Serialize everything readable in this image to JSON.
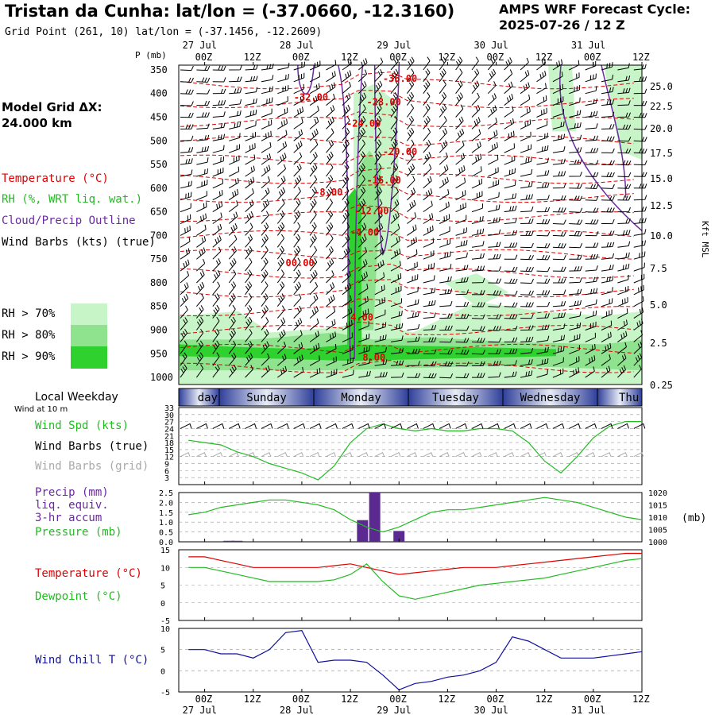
{
  "header": {
    "title": "Tristan da Cunha:  lat/lon = (-37.0660, -12.3160)",
    "subtitle": "Grid Point (261, 10) lat/lon = (-37.1456, -12.2609)",
    "cycle_line1": "AMPS WRF Forecast Cycle:",
    "cycle_line2": "2025-07-26 / 12  Z"
  },
  "left_panel": {
    "model_grid_line1": "Model Grid ΔX:",
    "model_grid_line2": " 24.000 km",
    "legend_temperature": "Temperature (°C)",
    "legend_rh": "RH (%, WRT liq. wat.)",
    "legend_cloud": "Cloud/Precip Outline",
    "legend_wind": "Wind Barbs (kts) (true)",
    "rh70": "RH > 70%",
    "rh80": "RH > 80%",
    "rh90": "RH > 90%",
    "local_weekday": "Local Weekday",
    "wind_at": "Wind at 10 m",
    "wind_spd": "Wind Spd (kts)",
    "wind_barbs_true": "Wind Barbs (true)",
    "wind_barbs_grid": "Wind Barbs (grid)",
    "precip1": "Precip (mm)",
    "precip2": "liq. equiv.",
    "precip3": "3-hr accum",
    "pressure": "Pressure (mb)",
    "temperature": "Temperature (°C)",
    "dewpoint": "Dewpoint (°C)",
    "windchill": "Wind Chill T (°C)"
  },
  "colors": {
    "temperature": "#e00000",
    "rh70": "#c8f5c8",
    "rh80": "#8fe38f",
    "rh90": "#2ed12e",
    "cloud": "#6a2aa0",
    "pressure": "#22bb22",
    "windchill": "#1010a0",
    "precip": "#5a2a90",
    "day_band": "#3a4aa0"
  },
  "chart_data": [
    {
      "type": "line",
      "id": "cross-section",
      "ylabel_left": "P (mb)",
      "ylabel_right": "Kft MSL",
      "pressure_ticks": [
        "350",
        "400",
        "450",
        "500",
        "550",
        "600",
        "650",
        "700",
        "750",
        "800",
        "850",
        "900",
        "950",
        "1000"
      ],
      "kft_ticks": [
        "25.0",
        "22.5",
        "20.0",
        "17.5",
        "15.0",
        "12.5",
        "10.0",
        "7.5",
        "5.0",
        "2.5",
        "0.25"
      ],
      "x_ticks_top": [
        "00Z",
        "12Z",
        "00Z",
        "12Z",
        "00Z",
        "12Z",
        "00Z",
        "12Z",
        "00Z",
        "12Z"
      ],
      "x_dates_top": [
        "27 Jul",
        "28 Jul",
        "29 Jul",
        "30 Jul",
        "31 Jul"
      ],
      "temperature_labels": [
        {
          "text": "-36.00",
          "p": 375
        },
        {
          "text": "-32.00",
          "p": 415
        },
        {
          "text": "-28.00",
          "p": 425
        },
        {
          "text": "-24.00",
          "p": 470
        },
        {
          "text": "-20.00",
          "p": 530
        },
        {
          "text": "-16.00",
          "p": 590
        },
        {
          "text": "-8.00",
          "p": 615
        },
        {
          "text": "-12.00",
          "p": 655
        },
        {
          "text": "-4.00",
          "p": 700
        },
        {
          "text": "00.00",
          "p": 765
        },
        {
          "text": "4.00",
          "p": 880
        },
        {
          "text": "8.00",
          "p": 965
        }
      ]
    },
    {
      "type": "line",
      "id": "weekday",
      "days": [
        "day",
        "Sunday",
        "Monday",
        "Tuesday",
        "Wednesday",
        "Thu"
      ]
    },
    {
      "type": "line",
      "id": "wind-speed",
      "ylabel": "Wind Spd (kts)",
      "yticks": [
        "33",
        "30",
        "27",
        "24",
        "21",
        "18",
        "15",
        "12",
        "9",
        "6",
        "3"
      ],
      "ylim": [
        0,
        33
      ],
      "x": [
        -4,
        0,
        4,
        8,
        12,
        16,
        20,
        24,
        28,
        32,
        36,
        40,
        44,
        48,
        52,
        56,
        60,
        64,
        68,
        72,
        76,
        80,
        84,
        88,
        92,
        96,
        100,
        104,
        108
      ],
      "values": [
        19,
        18,
        17,
        14,
        12,
        9,
        7,
        5,
        2,
        8,
        18,
        24,
        26,
        24,
        23,
        24,
        23,
        23,
        24,
        24,
        23,
        18,
        10,
        5,
        12,
        20,
        25,
        27,
        27
      ]
    },
    {
      "type": "bar",
      "id": "precip-pressure",
      "yticks_left": [
        "2.5",
        "2.0",
        "1.5",
        "1.0",
        "0.5",
        "0.0"
      ],
      "yticks_right": [
        "1020",
        "1015",
        "1010",
        "1005",
        "1000"
      ],
      "ylim_precip": [
        0,
        2.5
      ],
      "ylim_pressure": [
        1000,
        1020
      ],
      "precip_x": [
        6,
        8,
        39,
        42,
        48
      ],
      "precip_values": [
        0.05,
        0.05,
        1.1,
        2.5,
        0.55
      ],
      "pressure_x": [
        -4,
        0,
        4,
        8,
        12,
        16,
        20,
        24,
        28,
        32,
        36,
        40,
        44,
        48,
        52,
        56,
        60,
        64,
        68,
        72,
        76,
        80,
        84,
        88,
        92,
        96,
        100,
        104,
        108
      ],
      "pressure_values": [
        1011,
        1012,
        1014,
        1015,
        1016,
        1017,
        1017,
        1016,
        1015,
        1013,
        1009,
        1006,
        1004,
        1006,
        1009,
        1012,
        1013,
        1013,
        1014,
        1015,
        1016,
        1017,
        1018,
        1017,
        1016,
        1014,
        1012,
        1010,
        1009
      ]
    },
    {
      "type": "line",
      "id": "temp-dew",
      "yticks": [
        "15",
        "10",
        "5",
        "0",
        "-5"
      ],
      "ylim": [
        -5,
        15
      ],
      "x": [
        -4,
        0,
        4,
        8,
        12,
        16,
        20,
        24,
        28,
        32,
        36,
        40,
        44,
        48,
        52,
        56,
        60,
        64,
        68,
        72,
        76,
        80,
        84,
        88,
        92,
        96,
        100,
        104,
        108
      ],
      "series": [
        {
          "name": "Temperature",
          "values": [
            13,
            13,
            12,
            11,
            10,
            10,
            10,
            10,
            10,
            10.5,
            11,
            10,
            9,
            8,
            8.5,
            9,
            9.5,
            10,
            10,
            10,
            10.5,
            11,
            11.5,
            12,
            12.5,
            13,
            13.5,
            14,
            14
          ]
        },
        {
          "name": "Dewpoint",
          "values": [
            10,
            10,
            9,
            8,
            7,
            6,
            6,
            6,
            6,
            6.5,
            8,
            11,
            6,
            2,
            1,
            2,
            3,
            4,
            5,
            5.5,
            6,
            6.5,
            7,
            8,
            9,
            10,
            11,
            12,
            12.5
          ]
        }
      ]
    },
    {
      "type": "line",
      "id": "wind-chill",
      "yticks": [
        "10",
        "5",
        "0",
        "-5"
      ],
      "ylim": [
        -5,
        10
      ],
      "x": [
        -4,
        0,
        4,
        8,
        12,
        16,
        20,
        24,
        28,
        32,
        36,
        40,
        44,
        48,
        52,
        56,
        60,
        64,
        68,
        72,
        76,
        80,
        84,
        88,
        92,
        96,
        100,
        104,
        108
      ],
      "values": [
        5,
        5,
        4,
        4,
        3,
        5,
        9,
        9.5,
        2,
        2.5,
        2.5,
        2,
        -1,
        -4.5,
        -3,
        -2.5,
        -1.5,
        -1,
        0,
        2,
        8,
        7,
        5,
        3,
        3,
        3,
        3.5,
        4,
        4.5
      ]
    },
    {
      "type": "line",
      "id": "bottom-axis",
      "x_ticks": [
        "00Z",
        "12Z",
        "00Z",
        "12Z",
        "00Z",
        "12Z",
        "00Z",
        "12Z",
        "00Z",
        "12Z"
      ],
      "x_dates": [
        "27 Jul",
        "28 Jul",
        "29 Jul",
        "30 Jul",
        "31 Jul"
      ]
    }
  ]
}
